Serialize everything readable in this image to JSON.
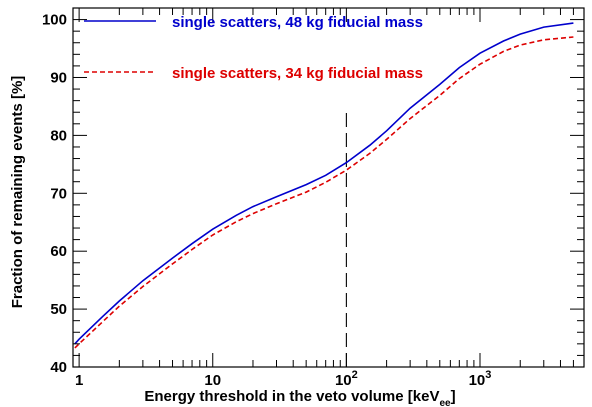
{
  "chart_data": {
    "type": "line",
    "xlabel_main": "Energy threshold in the veto volume [keV",
    "xlabel_sub": "ee",
    "xlabel_end": "]",
    "ylabel": "Fraction of remaining events [%]",
    "x_scale": "log",
    "xlim": [
      0.9,
      6000
    ],
    "ylim": [
      40,
      102
    ],
    "x_ticks": [
      {
        "value": 1,
        "base": "1",
        "exp": ""
      },
      {
        "value": 10,
        "base": "10",
        "exp": ""
      },
      {
        "value": 100,
        "base": "10",
        "exp": "2"
      },
      {
        "value": 1000,
        "base": "10",
        "exp": "3"
      }
    ],
    "y_ticks": [
      40,
      50,
      60,
      70,
      80,
      90,
      100
    ],
    "vline": {
      "x": 100,
      "y_range": [
        40,
        84
      ],
      "color": "#000000"
    },
    "series": [
      {
        "name": "single scatters, 48 kg fiducial mass",
        "color": "#0000cc",
        "dash": "solid",
        "x": [
          0.93,
          1,
          1.5,
          2,
          3,
          5,
          7,
          10,
          15,
          20,
          30,
          50,
          70,
          100,
          150,
          200,
          300,
          500,
          700,
          1000,
          1500,
          2000,
          3000,
          5000
        ],
        "y": [
          44,
          44.8,
          48.7,
          51.4,
          54.9,
          58.8,
          61.3,
          63.8,
          66.2,
          67.7,
          69.4,
          71.5,
          73.1,
          75.3,
          78.3,
          80.8,
          84.7,
          88.8,
          91.7,
          94.2,
          96.3,
          97.5,
          98.7,
          99.4
        ]
      },
      {
        "name": "single scatters, 34 kg fiducial mass",
        "color": "#dd0000",
        "dash": "dashed",
        "x": [
          0.93,
          1,
          1.5,
          2,
          3,
          5,
          7,
          10,
          15,
          20,
          30,
          50,
          70,
          100,
          150,
          200,
          300,
          500,
          700,
          1000,
          1500,
          2000,
          3000,
          5000
        ],
        "y": [
          43.3,
          44,
          47.8,
          50.5,
          53.9,
          57.8,
          60.3,
          62.8,
          65.1,
          66.5,
          68.2,
          70.2,
          71.9,
          74,
          76.9,
          79.3,
          82.9,
          86.9,
          89.8,
          92.3,
          94.5,
          95.6,
          96.5,
          97
        ]
      }
    ]
  }
}
